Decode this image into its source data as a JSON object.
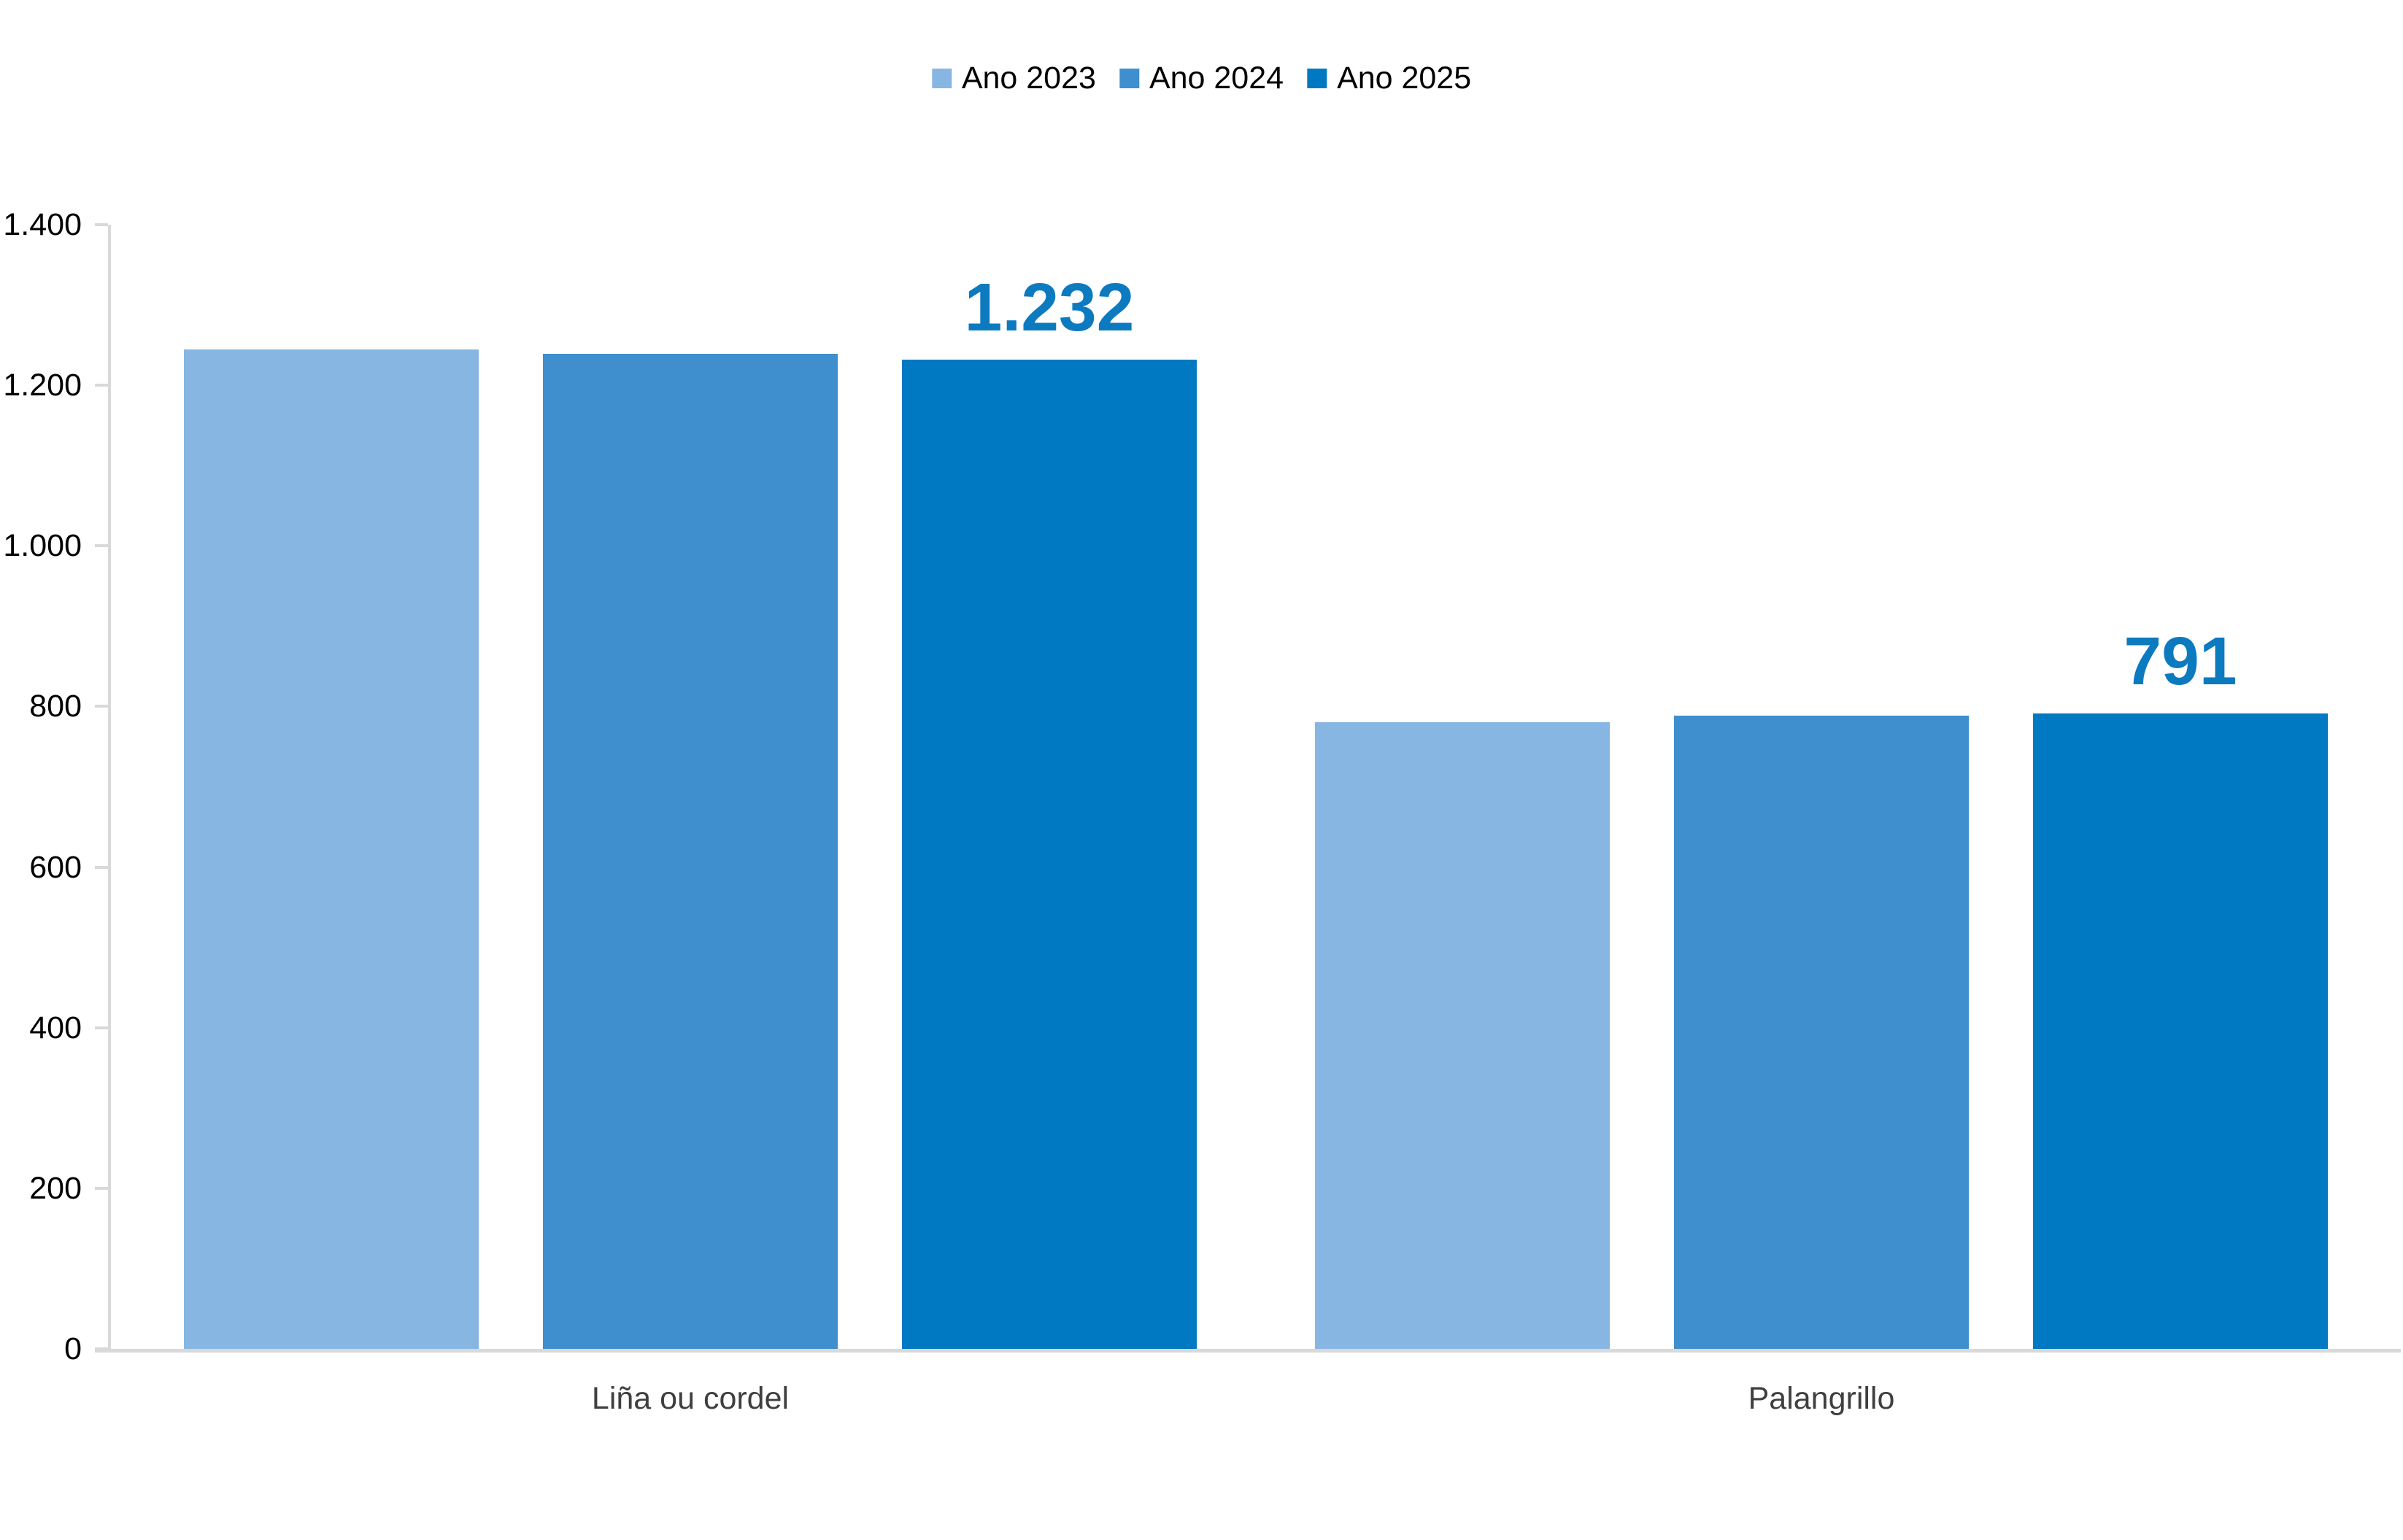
{
  "chart_data": {
    "type": "bar",
    "title": "",
    "categories": [
      "Liña ou cordel",
      "Palangrillo"
    ],
    "series": [
      {
        "name": "Ano 2023",
        "color": "#88B6E2",
        "values": [
          1245,
          780
        ]
      },
      {
        "name": "Ano 2024",
        "color": "#3F8FCE",
        "values": [
          1239,
          789
        ]
      },
      {
        "name": "Ano 2025",
        "color": "#0079C2",
        "values": [
          1232,
          791
        ]
      }
    ],
    "data_labels": {
      "series": "Ano 2025",
      "values": [
        "1.232",
        "791"
      ],
      "color": "#0C7ABF"
    },
    "y_axis": {
      "min": 0,
      "max": 1400,
      "step": 200,
      "tick_labels": [
        "0",
        "200",
        "400",
        "600",
        "800",
        "1.000",
        "1.200",
        "1.400"
      ]
    },
    "x_axis_labels": [
      "Liña ou cordel",
      "Palangrillo"
    ],
    "legend_position": "top-center",
    "grid": false,
    "axis_color": "#D9D9D9",
    "background_color": "#FFFFFF"
  }
}
